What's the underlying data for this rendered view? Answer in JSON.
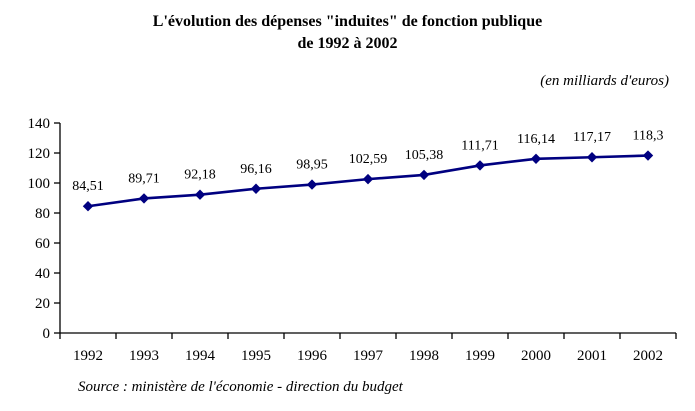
{
  "chart_data": {
    "type": "line",
    "title_line1": "L'évolution des dépenses \"induites\" de fonction publique",
    "title_line2": "de 1992 à 2002",
    "units_annotation": "(en milliards d'euros)",
    "source_annotation": "Source : ministère de l'économie - direction du budget",
    "categories": [
      "1992",
      "1993",
      "1994",
      "1995",
      "1996",
      "1997",
      "1998",
      "1999",
      "2000",
      "2001",
      "2002"
    ],
    "series": [
      {
        "values": [
          84.51,
          89.71,
          92.18,
          96.16,
          98.95,
          102.59,
          105.38,
          111.71,
          116.14,
          117.17,
          118.3
        ],
        "point_labels": [
          "84,51",
          "89,71",
          "92,18",
          "96,16",
          "98,95",
          "102,59",
          "105,38",
          "111,71",
          "116,14",
          "117,17",
          "118,3"
        ]
      }
    ],
    "xlabel": "",
    "ylabel": "",
    "ylim": [
      0,
      140
    ],
    "ytick_step": 20,
    "ytick_labels": [
      "0",
      "20",
      "40",
      "60",
      "80",
      "100",
      "120",
      "140"
    ],
    "grid": false,
    "legend": "none",
    "line_color": "#000080",
    "marker": "diamond",
    "axis_color": "#000000"
  }
}
